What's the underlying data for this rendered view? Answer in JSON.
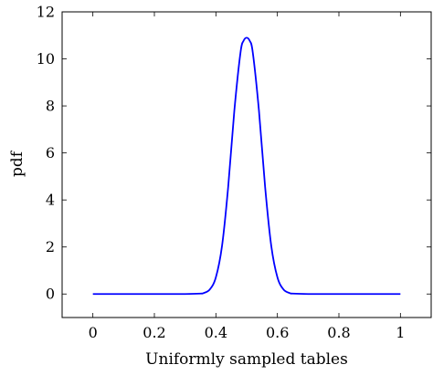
{
  "chart_data": {
    "type": "line",
    "title": "",
    "xlabel": "Uniformly sampled tables",
    "ylabel": "pdf",
    "xlim": [
      -0.1,
      1.1
    ],
    "ylim": [
      -1,
      12
    ],
    "xticks": [
      0,
      0.2,
      0.4,
      0.6,
      0.8,
      1
    ],
    "xtick_labels": [
      "0",
      "0.2",
      "0.4",
      "0.6",
      "0.8",
      "1"
    ],
    "yticks": [
      0,
      2,
      4,
      6,
      8,
      10,
      12
    ],
    "ytick_labels": [
      "0",
      "2",
      "4",
      "6",
      "8",
      "10",
      "12"
    ],
    "grid": false,
    "series": [
      {
        "color": "#0000ff",
        "x": [
          0,
          0.05,
          0.1,
          0.15,
          0.2,
          0.25,
          0.3,
          0.35,
          0.36,
          0.38,
          0.4,
          0.42,
          0.44,
          0.46,
          0.48,
          0.49,
          0.5,
          0.51,
          0.52,
          0.54,
          0.56,
          0.58,
          0.6,
          0.62,
          0.64,
          0.65,
          0.7,
          0.75,
          0.8,
          0.85,
          0.9,
          0.95,
          1
        ],
        "y": [
          0,
          0,
          0,
          0,
          0,
          0,
          0,
          0.02,
          0.04,
          0.19,
          0.71,
          2.05,
          4.56,
          7.8,
          10.27,
          10.77,
          10.9,
          10.77,
          10.27,
          7.8,
          4.56,
          2.05,
          0.71,
          0.19,
          0.04,
          0.02,
          0,
          0,
          0,
          0,
          0,
          0,
          0
        ]
      }
    ]
  }
}
